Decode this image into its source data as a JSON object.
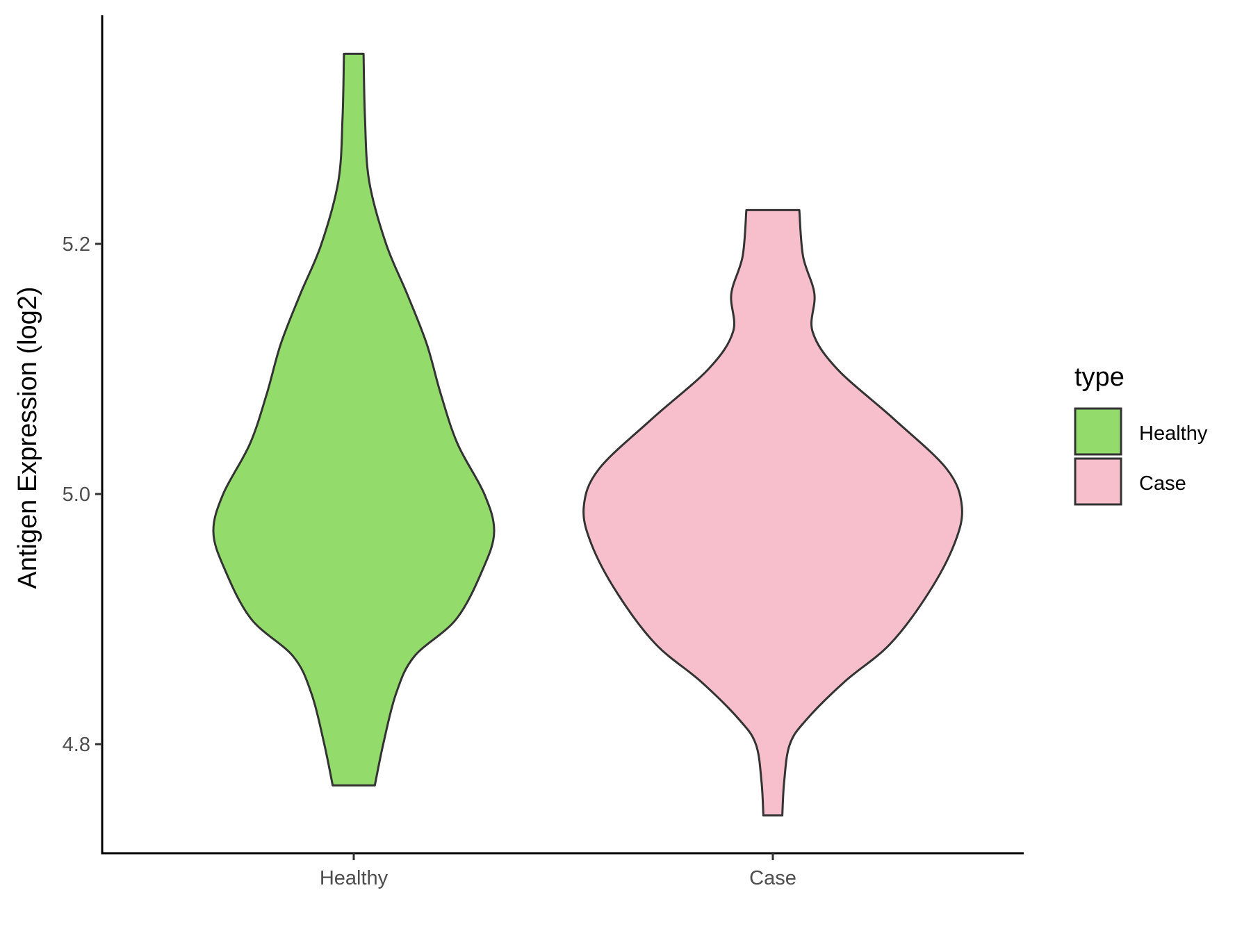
{
  "chart_data": {
    "type": "violin",
    "title": "",
    "xlabel": "",
    "ylabel": "Antigen Expression (log2)",
    "ylim": [
      4.71,
      5.38
    ],
    "yticks": [
      4.8,
      5.0,
      5.2
    ],
    "ytick_labels": [
      "4.8",
      "5.0",
      "5.2"
    ],
    "categories": [
      "Healthy",
      "Case"
    ],
    "grid": false,
    "legend": {
      "title": "type",
      "position": "right",
      "entries": [
        {
          "label": "Healthy",
          "color": "#93dc6b"
        },
        {
          "label": "Case",
          "color": "#f7bfcb"
        }
      ]
    },
    "series": [
      {
        "name": "Healthy",
        "color": "#93dc6b",
        "min": 4.767,
        "max": 5.352,
        "density_profile": [
          [
            4.767,
            0.15
          ],
          [
            4.8,
            0.21
          ],
          [
            4.84,
            0.3
          ],
          [
            4.87,
            0.43
          ],
          [
            4.9,
            0.73
          ],
          [
            4.94,
            0.92
          ],
          [
            4.97,
            1.0
          ],
          [
            5.0,
            0.93
          ],
          [
            5.04,
            0.74
          ],
          [
            5.08,
            0.62
          ],
          [
            5.12,
            0.52
          ],
          [
            5.16,
            0.38
          ],
          [
            5.2,
            0.23
          ],
          [
            5.25,
            0.11
          ],
          [
            5.3,
            0.08
          ],
          [
            5.352,
            0.07
          ]
        ]
      },
      {
        "name": "Case",
        "color": "#f7bfcb",
        "min": 4.743,
        "max": 5.227,
        "density_profile": [
          [
            4.743,
            0.05
          ],
          [
            4.77,
            0.06
          ],
          [
            4.8,
            0.09
          ],
          [
            4.82,
            0.18
          ],
          [
            4.85,
            0.38
          ],
          [
            4.88,
            0.62
          ],
          [
            4.92,
            0.82
          ],
          [
            4.96,
            0.96
          ],
          [
            4.99,
            1.0
          ],
          [
            5.02,
            0.92
          ],
          [
            5.06,
            0.64
          ],
          [
            5.1,
            0.34
          ],
          [
            5.13,
            0.21
          ],
          [
            5.16,
            0.22
          ],
          [
            5.19,
            0.16
          ],
          [
            5.227,
            0.14
          ]
        ]
      }
    ]
  }
}
